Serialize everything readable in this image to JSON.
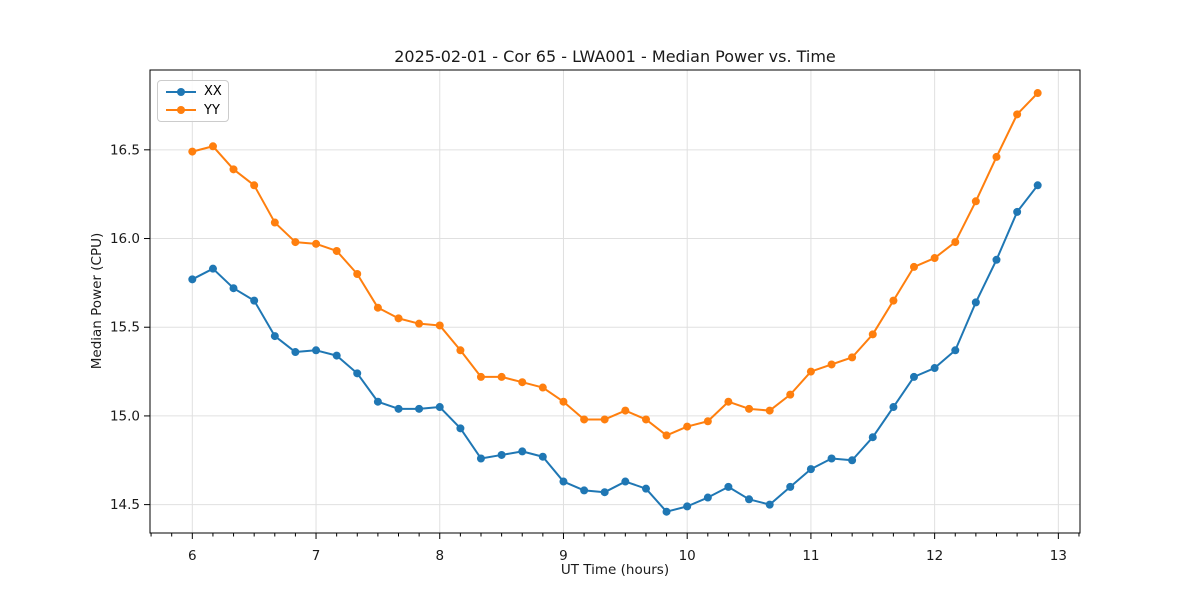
{
  "chart_data": {
    "type": "line",
    "title": "2025-02-01 - Cor 65 - LWA001 - Median Power vs. Time",
    "xlabel": "UT Time (hours)",
    "ylabel": "Median Power (CPU)",
    "x": [
      6.0,
      6.167,
      6.333,
      6.5,
      6.667,
      6.833,
      7.0,
      7.167,
      7.333,
      7.5,
      7.667,
      7.833,
      8.0,
      8.167,
      8.333,
      8.5,
      8.667,
      8.833,
      9.0,
      9.167,
      9.333,
      9.5,
      9.667,
      9.833,
      10.0,
      10.167,
      10.333,
      10.5,
      10.667,
      10.833,
      11.0,
      11.167,
      11.333,
      11.5,
      11.667,
      11.833,
      12.0,
      12.167,
      12.333,
      12.5,
      12.667,
      12.833
    ],
    "series": [
      {
        "name": "XX",
        "color": "#1f77b4",
        "marker": "circle",
        "values": [
          15.77,
          15.83,
          15.72,
          15.65,
          15.45,
          15.36,
          15.37,
          15.34,
          15.24,
          15.08,
          15.04,
          15.04,
          15.05,
          14.93,
          14.76,
          14.78,
          14.8,
          14.77,
          14.63,
          14.58,
          14.57,
          14.63,
          14.59,
          14.46,
          14.49,
          14.54,
          14.6,
          14.53,
          14.5,
          14.6,
          14.7,
          14.76,
          14.75,
          14.88,
          15.05,
          15.22,
          15.27,
          15.37,
          15.64,
          15.88,
          16.15,
          16.3
        ]
      },
      {
        "name": "YY",
        "color": "#ff7f0e",
        "marker": "circle",
        "values": [
          16.49,
          16.52,
          16.39,
          16.3,
          16.09,
          15.98,
          15.97,
          15.93,
          15.8,
          15.61,
          15.55,
          15.52,
          15.51,
          15.37,
          15.22,
          15.22,
          15.19,
          15.16,
          15.08,
          14.98,
          14.98,
          15.03,
          14.98,
          14.89,
          14.94,
          14.97,
          15.08,
          15.04,
          15.03,
          15.12,
          15.25,
          15.29,
          15.33,
          15.46,
          15.65,
          15.84,
          15.89,
          15.98,
          16.21,
          16.46,
          16.7,
          16.82
        ]
      }
    ],
    "xlim": [
      5.658,
      13.175
    ],
    "ylim": [
      14.34,
      16.95
    ],
    "xticks": [
      6,
      7,
      8,
      9,
      10,
      11,
      12,
      13
    ],
    "yticks": [
      14.5,
      15.0,
      15.5,
      16.0,
      16.5
    ],
    "x_minor_divisions": 6,
    "grid": true,
    "grid_color": "#e0e0e0",
    "axis_color": "#000000",
    "legend_position": "upper left"
  }
}
